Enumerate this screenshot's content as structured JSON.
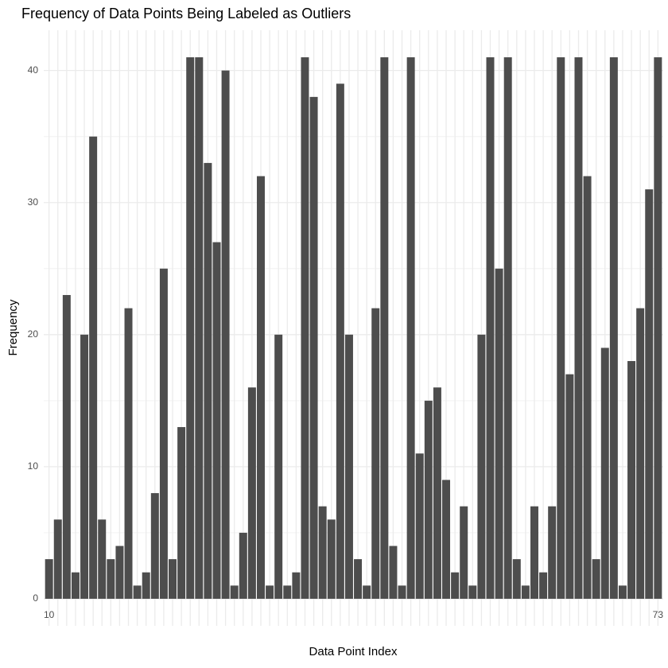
{
  "chart_data": {
    "type": "bar",
    "title": "Frequency of Data Points Being Labeled as Outliers",
    "x_label": "Data Point Index",
    "y_label": "Frequency",
    "categories": [
      "10",
      null,
      null,
      null,
      null,
      null,
      null,
      null,
      null,
      null,
      null,
      null,
      null,
      null,
      null,
      null,
      null,
      null,
      null,
      null,
      null,
      null,
      null,
      null,
      null,
      null,
      null,
      null,
      null,
      null,
      null,
      null,
      null,
      null,
      null,
      null,
      null,
      null,
      null,
      null,
      null,
      null,
      null,
      null,
      null,
      null,
      null,
      null,
      null,
      null,
      null,
      null,
      null,
      null,
      null,
      null,
      null,
      null,
      null,
      null,
      null,
      null,
      null,
      null,
      null,
      null,
      null,
      null,
      null,
      "73"
    ],
    "values": [
      3,
      6,
      23,
      2,
      20,
      35,
      6,
      3,
      4,
      22,
      1,
      2,
      8,
      25,
      3,
      13,
      41,
      41,
      33,
      27,
      40,
      1,
      5,
      16,
      32,
      1,
      20,
      1,
      2,
      41,
      38,
      7,
      6,
      39,
      20,
      3,
      1,
      22,
      41,
      4,
      1,
      41,
      11,
      15,
      16,
      9,
      2,
      7,
      1,
      20,
      41,
      25,
      41,
      3,
      1,
      7,
      2,
      7,
      41,
      17,
      41,
      32,
      3,
      19,
      41,
      1,
      18,
      22,
      31,
      41
    ],
    "color": "#4d4d4d",
    "ylim": [
      -2.05,
      43.05
    ],
    "yticks": [
      0,
      10,
      20,
      30,
      40
    ],
    "y_minor_ticks": [
      5,
      15,
      25,
      35
    ],
    "grid": true
  }
}
